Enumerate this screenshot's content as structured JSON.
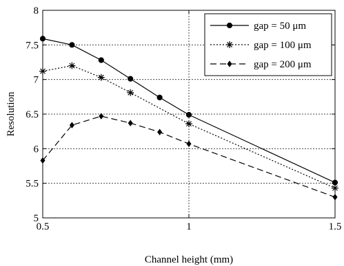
{
  "chart_data": {
    "type": "line",
    "xlabel": "Channel height (mm)",
    "ylabel": "Resolution",
    "xlim": [
      0.5,
      1.5
    ],
    "ylim": [
      5,
      8
    ],
    "xticks": [
      0.5,
      1,
      1.5
    ],
    "xtick_labels": [
      "0.5",
      "1",
      "1.5"
    ],
    "yticks": [
      5,
      5.5,
      6,
      6.5,
      7,
      7.5,
      8
    ],
    "ytick_labels": [
      "5",
      "5.5",
      "6",
      "6.5",
      "7",
      "7.5",
      "8"
    ],
    "grid": "dotted at major ticks",
    "legend_position": "top-right",
    "x": [
      0.5,
      0.6,
      0.7,
      0.8,
      0.9,
      1.0,
      1.5
    ],
    "series": [
      {
        "name": "gap = 50 μm",
        "marker": "circle",
        "line": "solid",
        "color": "#000000",
        "values": [
          7.59,
          7.5,
          7.28,
          7.01,
          6.74,
          6.49,
          5.51
        ]
      },
      {
        "name": "gap = 100 μm",
        "marker": "asterisk",
        "line": "dotted",
        "color": "#000000",
        "values": [
          7.12,
          7.2,
          7.03,
          6.81,
          null,
          6.36,
          5.43
        ]
      },
      {
        "name": "gap = 200 μm",
        "marker": "diamond",
        "line": "dashed",
        "color": "#000000",
        "values": [
          5.83,
          6.34,
          6.47,
          6.37,
          6.24,
          6.07,
          5.3
        ]
      }
    ]
  }
}
